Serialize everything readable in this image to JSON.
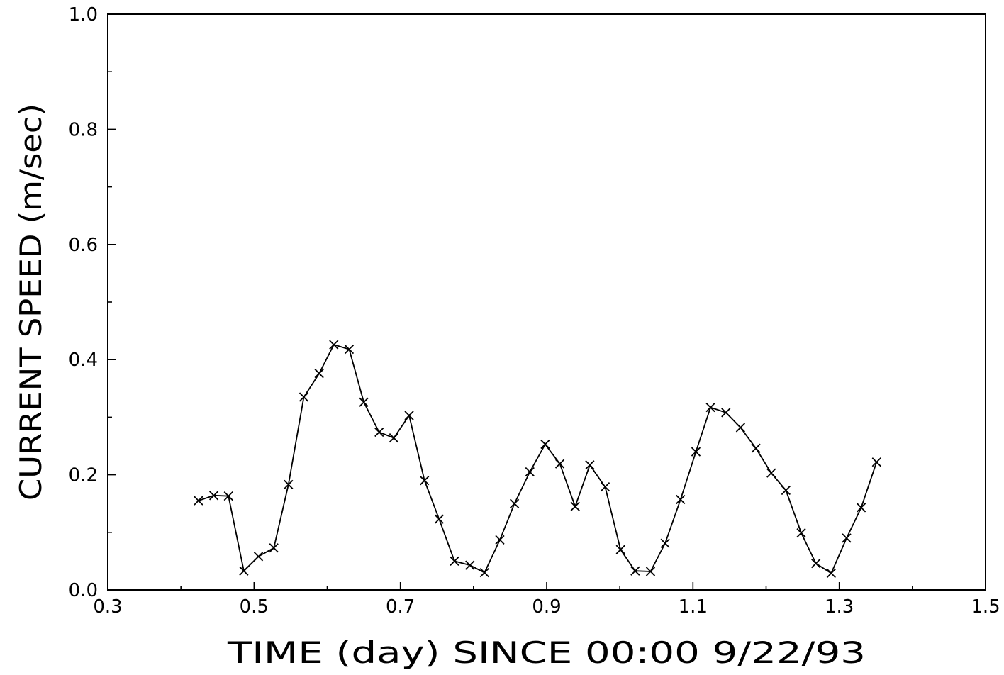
{
  "chart_data": {
    "type": "line",
    "xlabel": "TIME (day) SINCE 00:00 9/22/93",
    "ylabel": "CURRENT SPEED (m/sec)",
    "xlim": [
      0.3,
      1.5
    ],
    "ylim": [
      0.0,
      1.0
    ],
    "x_major_ticks": [
      0.3,
      0.5,
      0.7,
      0.9,
      1.1,
      1.3,
      1.5
    ],
    "x_tick_labels": [
      "0.3",
      "0.5",
      "0.7",
      "0.9",
      "1.1",
      "1.3",
      "1.5"
    ],
    "x_minor_ticks": [
      0.4,
      0.6,
      0.8,
      1.0,
      1.2,
      1.4
    ],
    "y_major_ticks": [
      0.0,
      0.2,
      0.4,
      0.6,
      0.8,
      1.0
    ],
    "y_tick_labels": [
      "0.0",
      "0.2",
      "0.4",
      "0.6",
      "0.8",
      "1.0"
    ],
    "y_minor_ticks": [
      0.1,
      0.3,
      0.5,
      0.7,
      0.9
    ],
    "grid": false,
    "marker": "x",
    "series": [
      {
        "x": [
          0.424,
          0.445,
          0.465,
          0.486,
          0.506,
          0.527,
          0.547,
          0.568,
          0.589,
          0.609,
          0.63,
          0.65,
          0.671,
          0.691,
          0.712,
          0.733,
          0.753,
          0.774,
          0.795,
          0.815,
          0.836,
          0.856,
          0.877,
          0.898,
          0.918,
          0.939,
          0.959,
          0.98,
          1.001,
          1.021,
          1.042,
          1.062,
          1.083,
          1.104,
          1.124,
          1.145,
          1.165,
          1.186,
          1.207,
          1.227,
          1.248,
          1.268,
          1.289,
          1.31,
          1.33,
          1.351
        ],
        "y": [
          0.155,
          0.164,
          0.163,
          0.033,
          0.058,
          0.073,
          0.183,
          0.335,
          0.376,
          0.426,
          0.418,
          0.326,
          0.274,
          0.264,
          0.303,
          0.19,
          0.123,
          0.05,
          0.043,
          0.03,
          0.087,
          0.15,
          0.205,
          0.253,
          0.219,
          0.145,
          0.217,
          0.179,
          0.07,
          0.033,
          0.032,
          0.081,
          0.157,
          0.24,
          0.317,
          0.308,
          0.282,
          0.246,
          0.203,
          0.173,
          0.099,
          0.046,
          0.029,
          0.09,
          0.143,
          0.222
        ]
      }
    ]
  }
}
